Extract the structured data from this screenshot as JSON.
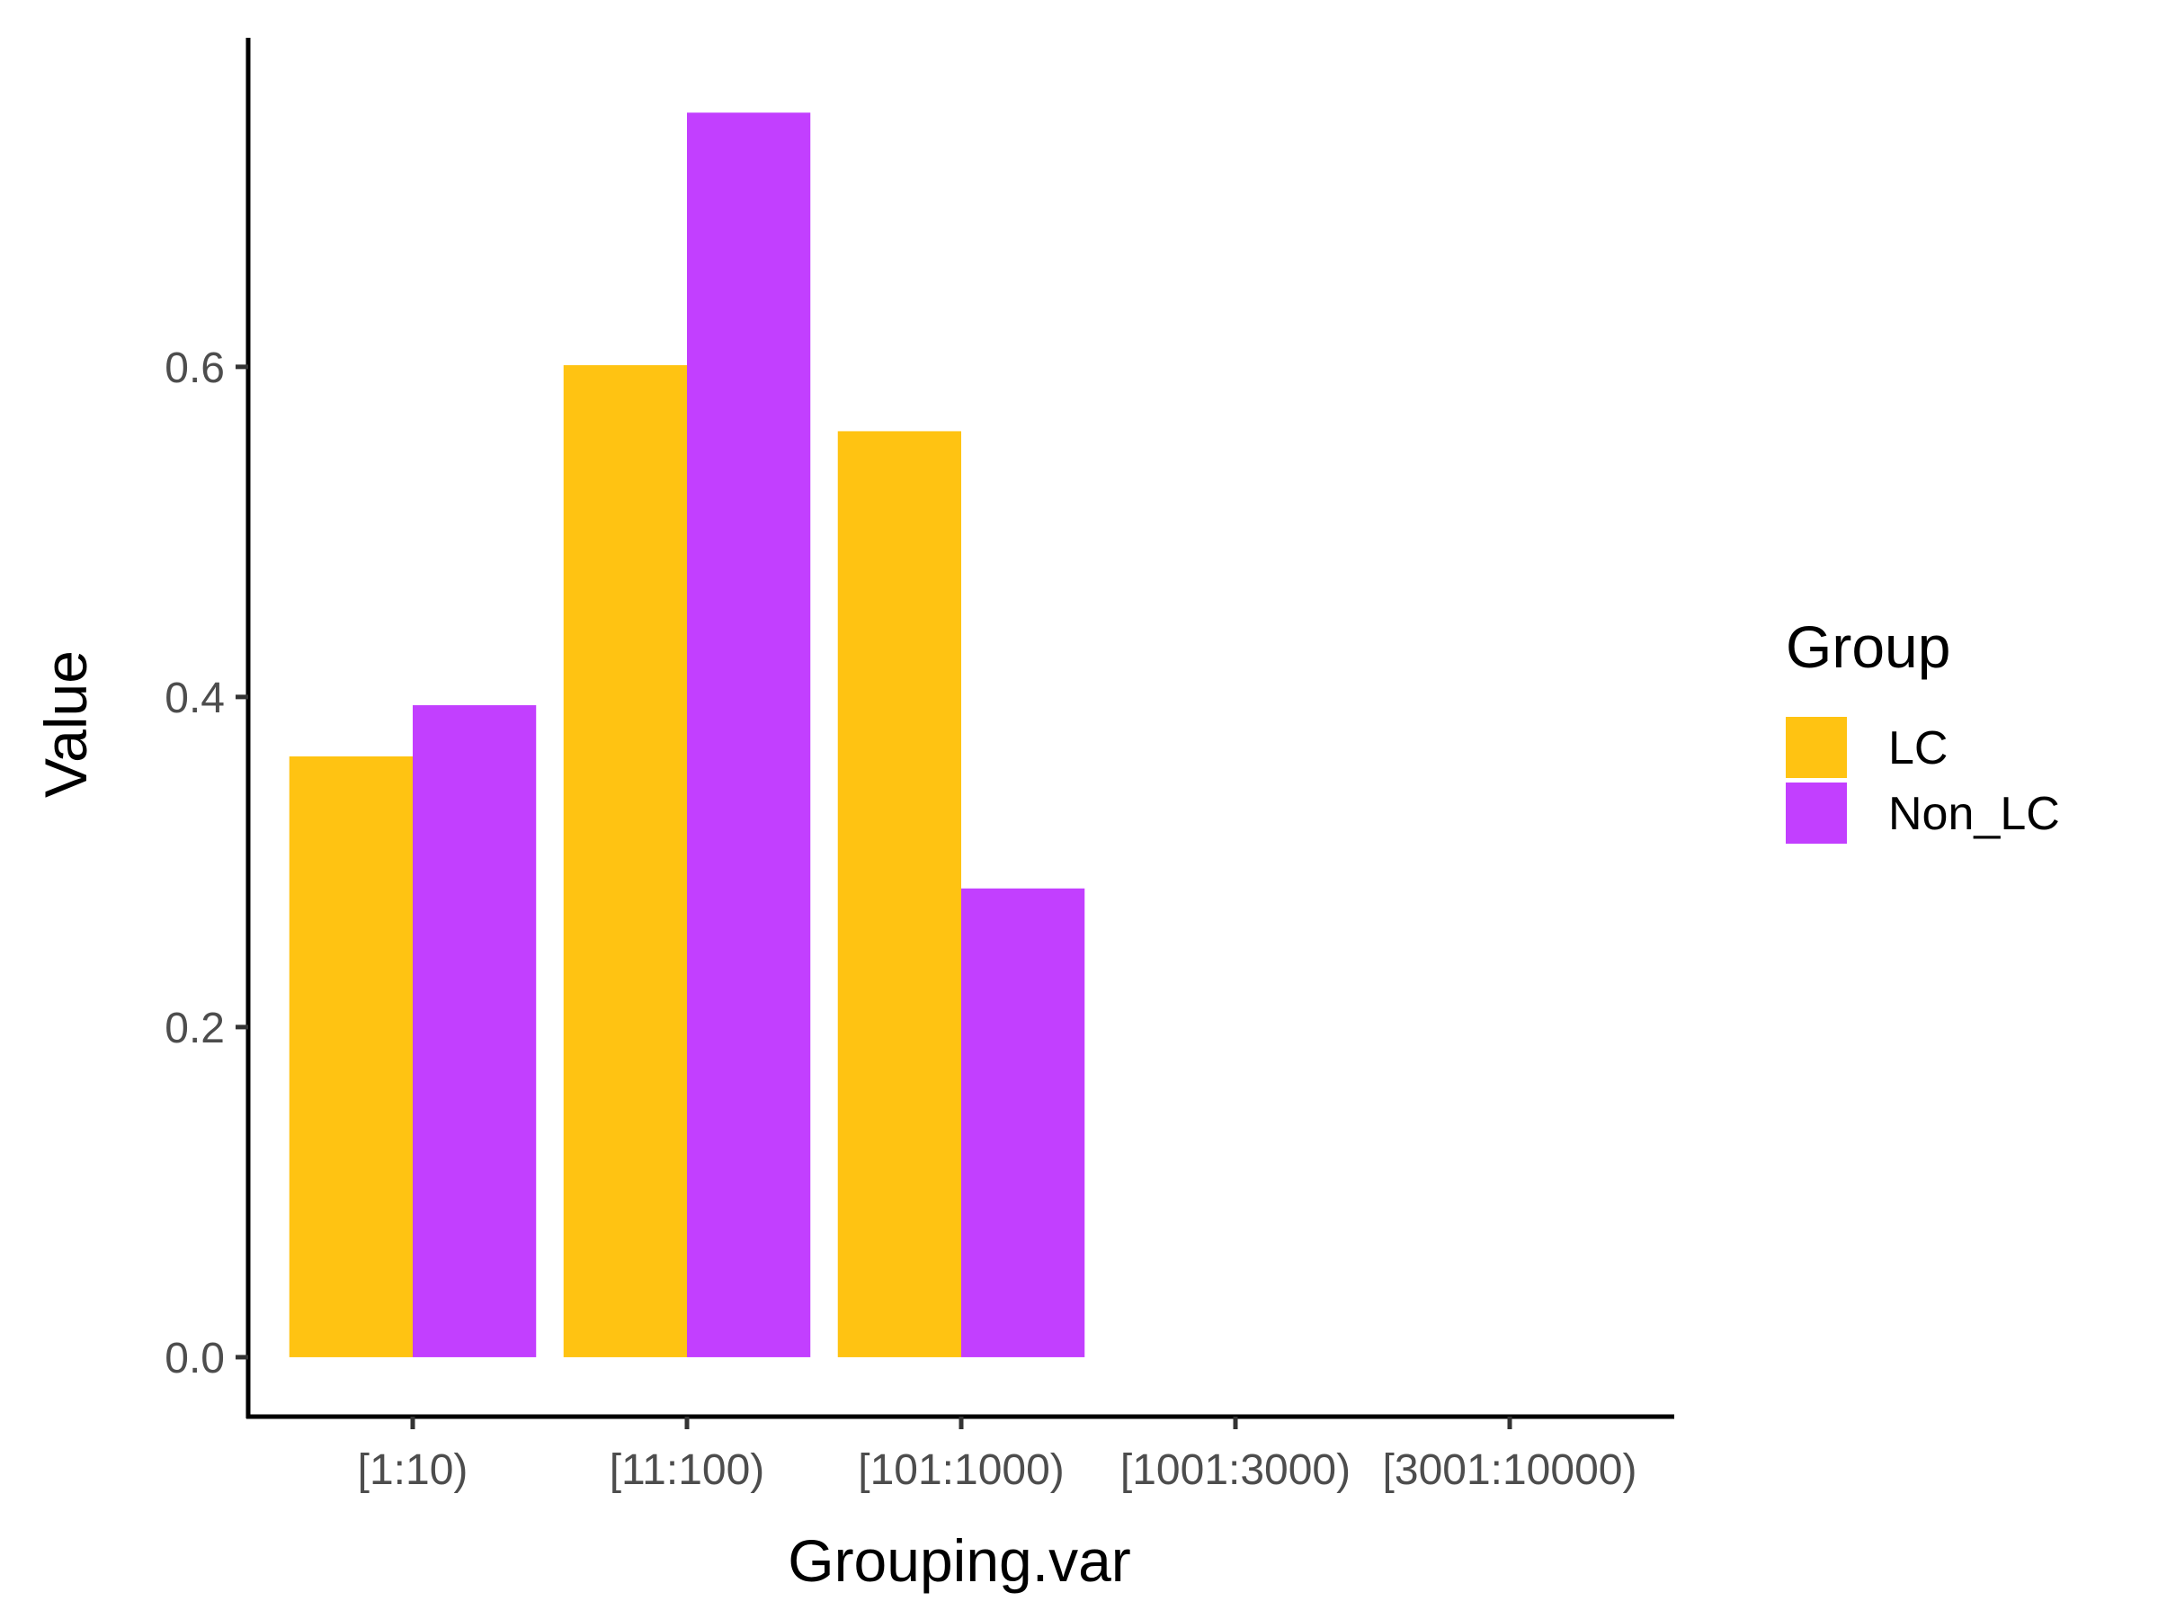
{
  "chart_data": {
    "type": "bar",
    "xlabel": "Grouping.var",
    "ylabel": "Value",
    "categories": [
      "[1:10)",
      "[11:100)",
      "[101:1000)",
      "[1001:3000)",
      "[3001:10000)"
    ],
    "series": [
      {
        "name": "LC",
        "color": "#FFC312",
        "values": [
          0.364,
          0.601,
          0.561,
          null,
          null
        ]
      },
      {
        "name": "Non_LC",
        "color": "#C23FFF",
        "values": [
          0.395,
          0.754,
          0.284,
          null,
          null
        ]
      }
    ],
    "yticks": [
      "0.0",
      "0.2",
      "0.4",
      "0.6"
    ],
    "ylim": [
      -0.036,
      0.795
    ],
    "legend": {
      "title": "Group",
      "position": "right"
    },
    "grid": false
  }
}
